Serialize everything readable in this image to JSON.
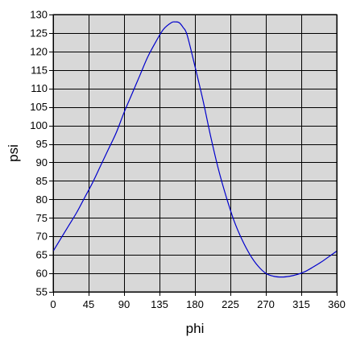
{
  "chart_data": {
    "type": "line",
    "title": "",
    "xlabel": "phi",
    "ylabel": "psi",
    "xlim": [
      0,
      360
    ],
    "ylim": [
      55,
      130
    ],
    "xticks": [
      0,
      45,
      90,
      135,
      180,
      225,
      270,
      315,
      360
    ],
    "yticks": [
      55,
      60,
      65,
      70,
      75,
      80,
      85,
      90,
      95,
      100,
      105,
      110,
      115,
      120,
      125,
      130
    ],
    "grid": true,
    "legend": "none",
    "colors": {
      "plot_background": "#d8d8d8",
      "grid": "#000000",
      "line": "#0000cc"
    },
    "series": [
      {
        "x": [
          0,
          10,
          20,
          30,
          40,
          50,
          60,
          70,
          80,
          90,
          100,
          110,
          120,
          130,
          140,
          150,
          155,
          160,
          165,
          170,
          180,
          190,
          200,
          210,
          220,
          230,
          240,
          250,
          260,
          270,
          280,
          290,
          300,
          310,
          320,
          330,
          340,
          350,
          360
        ],
        "y": [
          66,
          69.5,
          73,
          76.5,
          80.5,
          84.5,
          89,
          93.5,
          98,
          103.5,
          108.5,
          113.5,
          118.5,
          122.5,
          126,
          127.8,
          128,
          127.8,
          126.5,
          124.5,
          116,
          107,
          97,
          88,
          80.5,
          74,
          69,
          65,
          62,
          60,
          59.2,
          59,
          59.2,
          59.7,
          60.5,
          61.7,
          63,
          64.5,
          66
        ]
      }
    ]
  }
}
